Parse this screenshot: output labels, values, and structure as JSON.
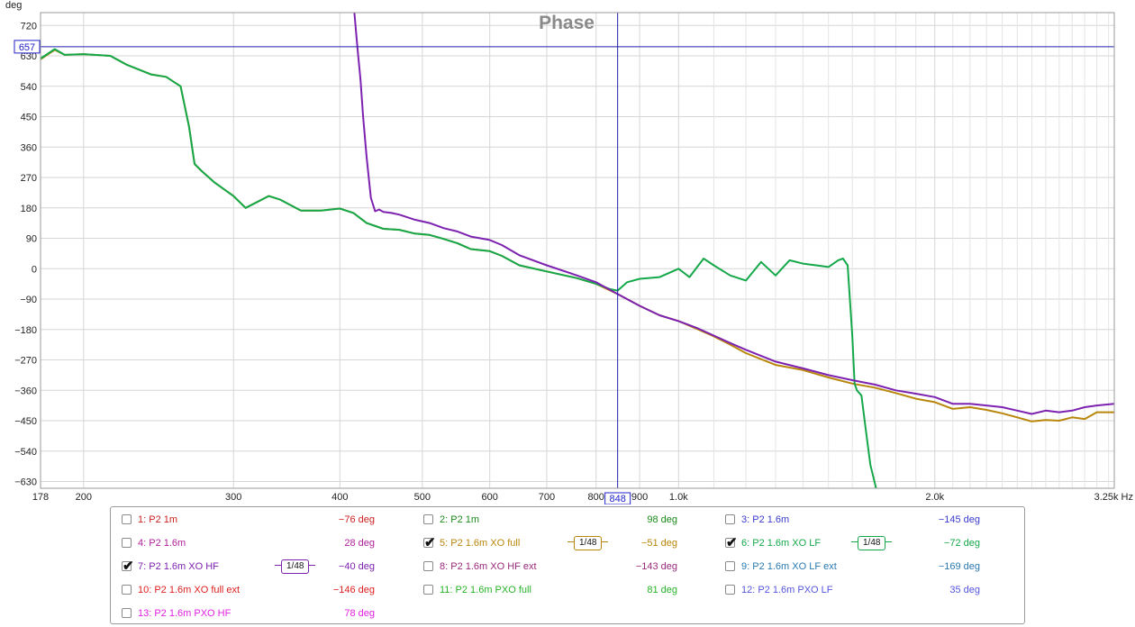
{
  "chart_data": {
    "type": "line",
    "title": "Phase",
    "y_unit": "deg",
    "x_unit": "Hz",
    "x_scale": "log",
    "xlim": [
      178,
      3250
    ],
    "ylim": [
      -650,
      758
    ],
    "y_ticks": [
      720,
      630,
      540,
      450,
      360,
      270,
      180,
      90,
      0,
      -90,
      -180,
      -270,
      -360,
      -450,
      -540,
      -630
    ],
    "x_ticks": [
      {
        "value": 178,
        "label": "178"
      },
      {
        "value": 200,
        "label": "200"
      },
      {
        "value": 300,
        "label": "300"
      },
      {
        "value": 400,
        "label": "400"
      },
      {
        "value": 500,
        "label": "500"
      },
      {
        "value": 600,
        "label": "600"
      },
      {
        "value": 700,
        "label": "700"
      },
      {
        "value": 800,
        "label": "800"
      },
      {
        "value": 900,
        "label": "900"
      },
      {
        "value": 1000,
        "label": "1.0k"
      },
      {
        "value": 2000,
        "label": "2.0k"
      },
      {
        "value": 3250,
        "label": "3.25k Hz"
      }
    ],
    "x_minor": [
      1100,
      1200,
      1300,
      1400,
      1500,
      1600,
      1700,
      1800,
      1900,
      2100,
      2200,
      2300,
      2400,
      2500,
      2600,
      2700,
      2800,
      2900,
      3000,
      3100,
      3200
    ],
    "cursor": {
      "x": 848,
      "y": 657,
      "x_label": "848",
      "y_label": "657"
    },
    "grid": true,
    "series": [
      {
        "name": "5: P2 1.6m XO full",
        "color": "#b8860b",
        "x": [
          178,
          185,
          190,
          200,
          215,
          225,
          240,
          250,
          260,
          266,
          270,
          275,
          285,
          300,
          310,
          330,
          340,
          360,
          380,
          400,
          415,
          430,
          450,
          470,
          490,
          510,
          530,
          550,
          570,
          600,
          620,
          650,
          700,
          760,
          800,
          848,
          900,
          950,
          1000,
          1050,
          1100,
          1150,
          1200,
          1300,
          1400,
          1500,
          1600,
          1700,
          1800,
          1900,
          2000,
          2100,
          2200,
          2300,
          2400,
          2500,
          2600,
          2700,
          2800,
          2900,
          3000,
          3100,
          3250
        ],
        "y": [
          620,
          648,
          633,
          635,
          630,
          603,
          575,
          568,
          540,
          420,
          310,
          290,
          255,
          215,
          180,
          215,
          205,
          172,
          172,
          178,
          165,
          135,
          118,
          115,
          104,
          100,
          88,
          75,
          58,
          52,
          38,
          10,
          -8,
          -28,
          -45,
          -75,
          -110,
          -138,
          -155,
          -178,
          -200,
          -225,
          -250,
          -285,
          -300,
          -322,
          -340,
          -352,
          -368,
          -385,
          -395,
          -415,
          -410,
          -418,
          -428,
          -440,
          -452,
          -448,
          -450,
          -440,
          -445,
          -425,
          -425
        ]
      },
      {
        "name": "6: P2 1.6m XO LF",
        "color": "#15a84a",
        "x": [
          178,
          185,
          190,
          200,
          215,
          225,
          240,
          250,
          260,
          266,
          270,
          275,
          285,
          300,
          310,
          330,
          340,
          360,
          380,
          400,
          415,
          430,
          450,
          470,
          490,
          510,
          530,
          550,
          570,
          600,
          620,
          650,
          700,
          760,
          800,
          830,
          848,
          870,
          900,
          950,
          1000,
          1030,
          1070,
          1100,
          1150,
          1200,
          1250,
          1300,
          1350,
          1400,
          1450,
          1500,
          1540,
          1560,
          1580,
          1600,
          1610,
          1620,
          1640,
          1660,
          1680,
          1710
        ],
        "y": [
          622,
          650,
          633,
          635,
          630,
          603,
          575,
          568,
          540,
          420,
          310,
          290,
          255,
          215,
          180,
          215,
          205,
          172,
          172,
          178,
          165,
          135,
          118,
          115,
          104,
          100,
          88,
          75,
          58,
          52,
          38,
          10,
          -8,
          -28,
          -45,
          -60,
          -65,
          -40,
          -30,
          -25,
          0,
          -25,
          30,
          10,
          -20,
          -35,
          20,
          -20,
          25,
          15,
          10,
          5,
          25,
          30,
          10,
          -200,
          -340,
          -360,
          -375,
          -480,
          -580,
          -660
        ]
      },
      {
        "name": "7: P2 1.6m XO HF",
        "color": "#7d22b0",
        "x": [
          416,
          418,
          420,
          423,
          426,
          430,
          435,
          440,
          445,
          450,
          460,
          470,
          490,
          510,
          530,
          550,
          570,
          600,
          620,
          650,
          700,
          760,
          800,
          848,
          900,
          950,
          1000,
          1050,
          1100,
          1150,
          1200,
          1300,
          1400,
          1500,
          1600,
          1700,
          1800,
          1900,
          2000,
          2100,
          2200,
          2300,
          2400,
          2500,
          2600,
          2700,
          2800,
          2900,
          3000,
          3100,
          3250
        ],
        "y": [
          758,
          700,
          640,
          560,
          450,
          330,
          210,
          170,
          175,
          168,
          165,
          160,
          145,
          135,
          120,
          110,
          95,
          85,
          70,
          40,
          10,
          -20,
          -40,
          -75,
          -110,
          -138,
          -155,
          -175,
          -198,
          -220,
          -240,
          -275,
          -295,
          -315,
          -330,
          -343,
          -360,
          -370,
          -380,
          -400,
          -400,
          -405,
          -410,
          -420,
          -430,
          -420,
          -425,
          -420,
          -410,
          -405,
          -400
        ]
      }
    ]
  },
  "legend": {
    "items": [
      {
        "label": "1: P2 1m",
        "value": "−76 deg",
        "color": "#cc2020",
        "checked": false
      },
      {
        "label": "2: P2 1m",
        "value": "98 deg",
        "color": "#1a8a1a",
        "checked": false
      },
      {
        "label": "3: P2 1.6m",
        "value": "−145 deg",
        "color": "#3a3acc",
        "checked": false
      },
      {
        "label": "4: P2 1.6m",
        "value": "28 deg",
        "color": "#b0209a",
        "checked": false
      },
      {
        "label": "5: P2 1.6m XO full",
        "value": "−51 deg",
        "color": "#b8860b",
        "checked": true,
        "smoothing": "1/48"
      },
      {
        "label": "6: P2 1.6m XO LF",
        "value": "−72 deg",
        "color": "#15a84a",
        "checked": true,
        "smoothing": "1/48"
      },
      {
        "label": "7: P2 1.6m XO HF",
        "value": "−40 deg",
        "color": "#7d22b0",
        "checked": true,
        "smoothing": "1/48"
      },
      {
        "label": "8: P2 1.6m XO HF ext",
        "value": "−143 deg",
        "color": "#9a2a7a",
        "checked": false
      },
      {
        "label": "9: P2 1.6m XO LF ext",
        "value": "−169 deg",
        "color": "#2a7ab0",
        "checked": false
      },
      {
        "label": "10: P2 1.6m XO full ext",
        "value": "−146 deg",
        "color": "#dd2020",
        "checked": false
      },
      {
        "label": "11: P2 1.6m PXO full",
        "value": "81 deg",
        "color": "#28b428",
        "checked": false
      },
      {
        "label": "12: P2 1.6m PXO LF",
        "value": "35 deg",
        "color": "#5555dd",
        "checked": false
      },
      {
        "label": "13: P2 1.6m PXO HF",
        "value": "78 deg",
        "color": "#e020e0",
        "checked": false
      }
    ]
  }
}
